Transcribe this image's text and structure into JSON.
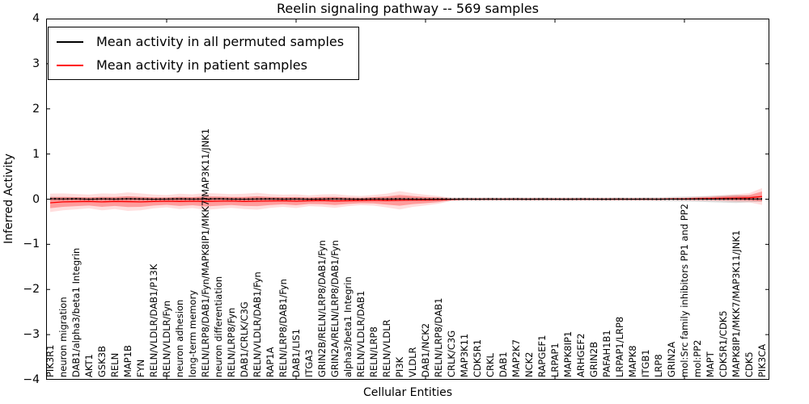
{
  "chart_data": {
    "type": "line",
    "title": "Reelin signaling pathway -- 569 samples",
    "xlabel": "Cellular Entities",
    "ylabel": "Inferred Activity",
    "ylim": [
      -4,
      4
    ],
    "grid": false,
    "legend_position": "upper left",
    "y_ticks": [
      "4",
      "3",
      "2",
      "1",
      "0",
      "−1",
      "−2",
      "−3",
      "−4"
    ],
    "y_tick_values": [
      4,
      3,
      2,
      1,
      0,
      -1,
      -2,
      -3,
      -4
    ],
    "x_tick_data_positions": [
      10,
      20,
      30,
      40,
      50
    ],
    "categories": [
      "PIK3R1",
      "neuron migration",
      "DAB1/alpha3/beta1 Integrin",
      "AKT1",
      "GSK3B",
      "RELN",
      "MAP1B",
      "FYN",
      "RELN/VLDLR/DAB1/P13K",
      "RELN/VLDLR/Fyn",
      "neuron adhesion",
      "long-term memory",
      "RELN/LRP8/DAB1/Fyn/MAPK8IP1/MKK7/MAP3K11/JNK1",
      "neuron differentiation",
      "RELN/LRP8/Fyn",
      "DAB1/CRLK/C3G",
      "RELN/VLDLR/DAB1/Fyn",
      "RAP1A",
      "RELN/LRP8/DAB1/Fyn",
      "DAB1/LIS1",
      "ITGA3",
      "GRIN2B/RELN/LRP8/DAB1/Fyn",
      "GRIN2A/RELN/LRP8/DAB1/Fyn",
      "alpha3/beta1 Integrin",
      "RELN/VLDLR/DAB1",
      "RELN/LRP8",
      "RELN/VLDLR",
      "PI3K",
      "VLDLR",
      "DAB1/NCK2",
      "RELN/LRP8/DAB1",
      "CRLK/C3G",
      "MAP3K11",
      "CDK5R1",
      "CRKL",
      "DAB1",
      "MAP2K7",
      "NCK2",
      "RAPGEF1",
      "LRPAP1",
      "MAPK8IP1",
      "ARHGEF2",
      "GRIN2B",
      "PAFAH1B1",
      "LRPAP1/LRP8",
      "MAPK8",
      "ITGB1",
      "LRP8",
      "GRIN2A",
      "mol:Src family inhibitors PP1 and PP2",
      "mol:PP2",
      "MAPT",
      "CDK5R1/CDK5",
      "MAPK8IP1/MKK7/MAP3K11/JNK1",
      "CDK5",
      "PIK3CA"
    ],
    "series": [
      {
        "name": "Mean activity in all permuted samples",
        "color": "#000000",
        "band_color": "rgba(130,130,130,0.25)",
        "values": [
          0.01,
          0.005,
          0.008,
          0.0,
          0.006,
          0.002,
          0.008,
          0.004,
          0.0,
          0.003,
          0.006,
          0.002,
          0.005,
          0.008,
          0.003,
          0.0,
          0.004,
          0.007,
          0.002,
          0.005,
          0.0,
          0.003,
          0.006,
          0.002,
          0.0,
          0.004,
          0.002,
          0.005,
          0.002,
          0.0,
          0.003,
          0.001,
          0.002,
          0.0,
          0.002,
          0.001,
          0.002,
          0.0,
          0.002,
          0.001,
          0.0,
          0.002,
          0.001,
          0.0,
          0.002,
          0.001,
          0.002,
          0.0,
          0.002,
          0.003,
          0.004,
          0.003,
          0.005,
          0.006,
          0.004,
          0.005
        ],
        "std": [
          0.05,
          0.045,
          0.04,
          0.04,
          0.045,
          0.04,
          0.05,
          0.045,
          0.04,
          0.04,
          0.045,
          0.04,
          0.05,
          0.045,
          0.04,
          0.045,
          0.05,
          0.04,
          0.04,
          0.045,
          0.04,
          0.04,
          0.045,
          0.04,
          0.035,
          0.04,
          0.045,
          0.05,
          0.045,
          0.04,
          0.04,
          0.04,
          0.04,
          0.04,
          0.04,
          0.04,
          0.04,
          0.04,
          0.04,
          0.04,
          0.04,
          0.04,
          0.04,
          0.04,
          0.04,
          0.04,
          0.04,
          0.045,
          0.05,
          0.055,
          0.06,
          0.07,
          0.08,
          0.09,
          0.07,
          0.06
        ]
      },
      {
        "name": "Mean activity in patient samples",
        "color": "#ff0000",
        "band_color": "rgba(255,0,0,0.30)",
        "values": [
          -0.08,
          -0.06,
          -0.055,
          -0.05,
          -0.06,
          -0.05,
          -0.055,
          -0.06,
          -0.05,
          -0.045,
          -0.05,
          -0.045,
          -0.05,
          -0.045,
          -0.04,
          -0.05,
          -0.045,
          -0.04,
          -0.035,
          -0.045,
          -0.035,
          -0.03,
          -0.04,
          -0.035,
          -0.03,
          -0.025,
          -0.03,
          -0.025,
          -0.02,
          -0.02,
          -0.015,
          -0.005,
          0,
          0,
          0,
          0,
          0,
          0,
          0,
          0,
          0,
          0,
          0,
          0,
          0,
          0,
          0,
          0,
          0.005,
          0.005,
          0.01,
          0.015,
          0.02,
          0.025,
          0.03,
          0.06
        ],
        "std": [
          0.12,
          0.11,
          0.1,
          0.09,
          0.11,
          0.1,
          0.12,
          0.11,
          0.09,
          0.08,
          0.1,
          0.09,
          0.11,
          0.1,
          0.09,
          0.1,
          0.11,
          0.09,
          0.08,
          0.09,
          0.07,
          0.08,
          0.09,
          0.07,
          0.06,
          0.07,
          0.09,
          0.12,
          0.09,
          0.07,
          0.05,
          0.02,
          0.015,
          0.015,
          0.015,
          0.015,
          0.015,
          0.015,
          0.015,
          0.015,
          0.015,
          0.015,
          0.015,
          0.015,
          0.015,
          0.015,
          0.015,
          0.015,
          0.015,
          0.02,
          0.025,
          0.03,
          0.04,
          0.05,
          0.06,
          0.11
        ]
      }
    ]
  }
}
